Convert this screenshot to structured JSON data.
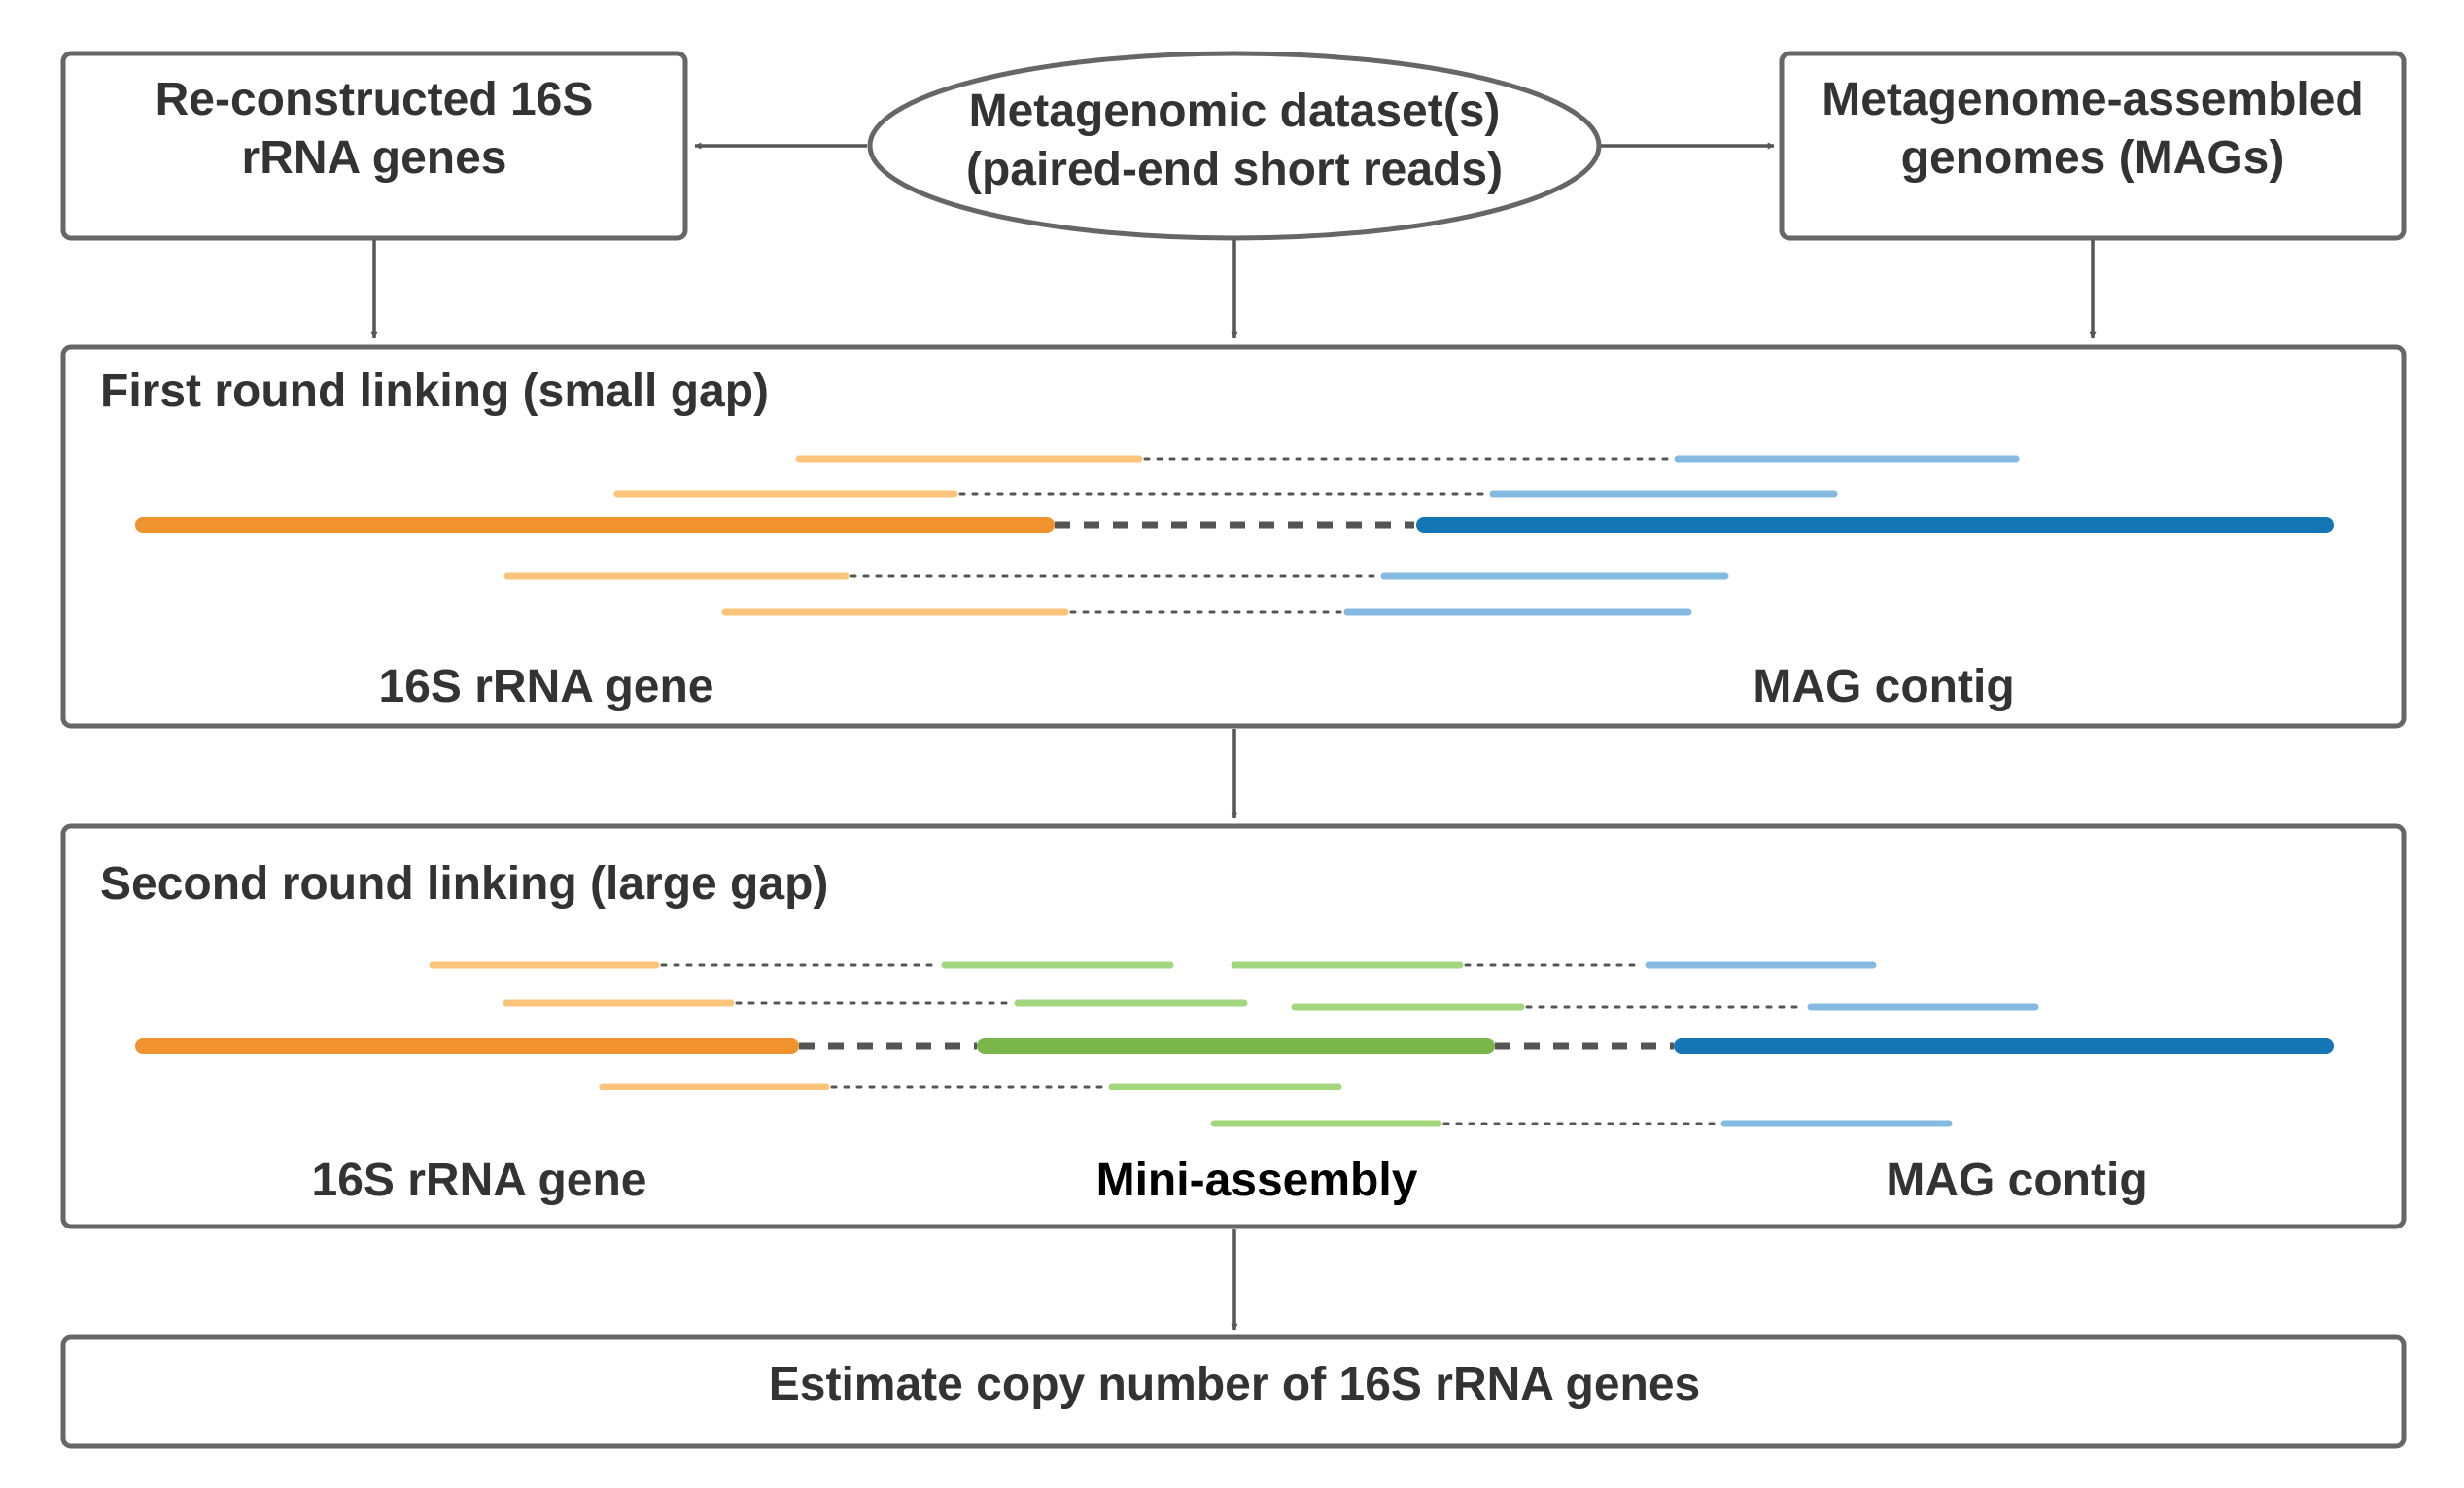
{
  "nodes": {
    "reconstructed": [
      "Re-constructed 16S",
      "rRNA genes"
    ],
    "dataset": [
      "Metagenomic dataset(s)",
      "(paired-end short reads)"
    ],
    "mags": [
      "Metagenome-assembled",
      "genomes (MAGs)"
    ]
  },
  "round1": {
    "title": "First round linking (small gap)",
    "left_label": "16S rRNA gene",
    "right_label": "MAG contig"
  },
  "round2": {
    "title": "Second round linking (large gap)",
    "left_label": "16S rRNA gene",
    "middle_label": "Mini-assembly",
    "right_label": "MAG contig"
  },
  "final": {
    "label": "Estimate copy number of 16S rRNA genes"
  },
  "colors": {
    "gene_dark": "#f0922d",
    "gene_light": "#fbc47a",
    "mag_dark": "#1576b6",
    "mag_light": "#84b9e2",
    "mini_dark": "#79b74a",
    "mini_light": "#a3d77e",
    "box_stroke": "#666666",
    "text": "#333333"
  }
}
